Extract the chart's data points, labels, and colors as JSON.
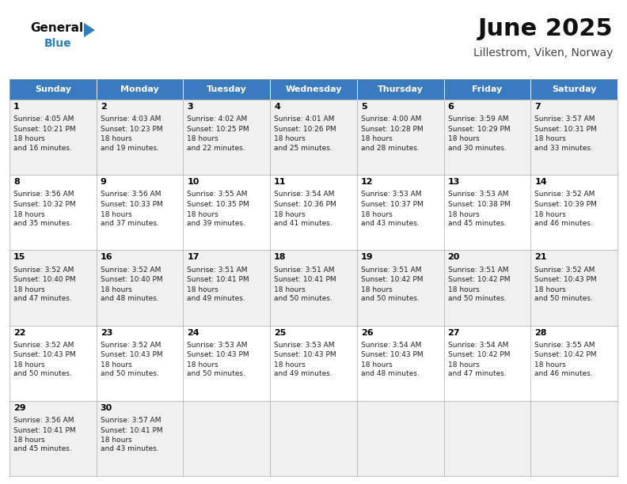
{
  "title": "June 2025",
  "subtitle": "Lillestrom, Viken, Norway",
  "header_color": "#3a7abf",
  "header_text_color": "#ffffff",
  "days_of_week": [
    "Sunday",
    "Monday",
    "Tuesday",
    "Wednesday",
    "Thursday",
    "Friday",
    "Saturday"
  ],
  "bg_color": "#ffffff",
  "cell_bg_even": "#f0f0f0",
  "cell_bg_odd": "#ffffff",
  "border_color": "#aaaaaa",
  "day_number_color": "#000000",
  "text_color": "#222222",
  "logo_general_color": "#111111",
  "logo_blue_color": "#2e7dbf",
  "title_color": "#111111",
  "subtitle_color": "#444444",
  "calendar_data": [
    [
      {
        "day": 1,
        "sunrise": "4:05 AM",
        "sunset": "10:21 PM",
        "daylight": "18 hours\nand 16 minutes."
      },
      {
        "day": 2,
        "sunrise": "4:03 AM",
        "sunset": "10:23 PM",
        "daylight": "18 hours\nand 19 minutes."
      },
      {
        "day": 3,
        "sunrise": "4:02 AM",
        "sunset": "10:25 PM",
        "daylight": "18 hours\nand 22 minutes."
      },
      {
        "day": 4,
        "sunrise": "4:01 AM",
        "sunset": "10:26 PM",
        "daylight": "18 hours\nand 25 minutes."
      },
      {
        "day": 5,
        "sunrise": "4:00 AM",
        "sunset": "10:28 PM",
        "daylight": "18 hours\nand 28 minutes."
      },
      {
        "day": 6,
        "sunrise": "3:59 AM",
        "sunset": "10:29 PM",
        "daylight": "18 hours\nand 30 minutes."
      },
      {
        "day": 7,
        "sunrise": "3:57 AM",
        "sunset": "10:31 PM",
        "daylight": "18 hours\nand 33 minutes."
      }
    ],
    [
      {
        "day": 8,
        "sunrise": "3:56 AM",
        "sunset": "10:32 PM",
        "daylight": "18 hours\nand 35 minutes."
      },
      {
        "day": 9,
        "sunrise": "3:56 AM",
        "sunset": "10:33 PM",
        "daylight": "18 hours\nand 37 minutes."
      },
      {
        "day": 10,
        "sunrise": "3:55 AM",
        "sunset": "10:35 PM",
        "daylight": "18 hours\nand 39 minutes."
      },
      {
        "day": 11,
        "sunrise": "3:54 AM",
        "sunset": "10:36 PM",
        "daylight": "18 hours\nand 41 minutes."
      },
      {
        "day": 12,
        "sunrise": "3:53 AM",
        "sunset": "10:37 PM",
        "daylight": "18 hours\nand 43 minutes."
      },
      {
        "day": 13,
        "sunrise": "3:53 AM",
        "sunset": "10:38 PM",
        "daylight": "18 hours\nand 45 minutes."
      },
      {
        "day": 14,
        "sunrise": "3:52 AM",
        "sunset": "10:39 PM",
        "daylight": "18 hours\nand 46 minutes."
      }
    ],
    [
      {
        "day": 15,
        "sunrise": "3:52 AM",
        "sunset": "10:40 PM",
        "daylight": "18 hours\nand 47 minutes."
      },
      {
        "day": 16,
        "sunrise": "3:52 AM",
        "sunset": "10:40 PM",
        "daylight": "18 hours\nand 48 minutes."
      },
      {
        "day": 17,
        "sunrise": "3:51 AM",
        "sunset": "10:41 PM",
        "daylight": "18 hours\nand 49 minutes."
      },
      {
        "day": 18,
        "sunrise": "3:51 AM",
        "sunset": "10:41 PM",
        "daylight": "18 hours\nand 50 minutes."
      },
      {
        "day": 19,
        "sunrise": "3:51 AM",
        "sunset": "10:42 PM",
        "daylight": "18 hours\nand 50 minutes."
      },
      {
        "day": 20,
        "sunrise": "3:51 AM",
        "sunset": "10:42 PM",
        "daylight": "18 hours\nand 50 minutes."
      },
      {
        "day": 21,
        "sunrise": "3:52 AM",
        "sunset": "10:43 PM",
        "daylight": "18 hours\nand 50 minutes."
      }
    ],
    [
      {
        "day": 22,
        "sunrise": "3:52 AM",
        "sunset": "10:43 PM",
        "daylight": "18 hours\nand 50 minutes."
      },
      {
        "day": 23,
        "sunrise": "3:52 AM",
        "sunset": "10:43 PM",
        "daylight": "18 hours\nand 50 minutes."
      },
      {
        "day": 24,
        "sunrise": "3:53 AM",
        "sunset": "10:43 PM",
        "daylight": "18 hours\nand 50 minutes."
      },
      {
        "day": 25,
        "sunrise": "3:53 AM",
        "sunset": "10:43 PM",
        "daylight": "18 hours\nand 49 minutes."
      },
      {
        "day": 26,
        "sunrise": "3:54 AM",
        "sunset": "10:43 PM",
        "daylight": "18 hours\nand 48 minutes."
      },
      {
        "day": 27,
        "sunrise": "3:54 AM",
        "sunset": "10:42 PM",
        "daylight": "18 hours\nand 47 minutes."
      },
      {
        "day": 28,
        "sunrise": "3:55 AM",
        "sunset": "10:42 PM",
        "daylight": "18 hours\nand 46 minutes."
      }
    ],
    [
      {
        "day": 29,
        "sunrise": "3:56 AM",
        "sunset": "10:41 PM",
        "daylight": "18 hours\nand 45 minutes."
      },
      {
        "day": 30,
        "sunrise": "3:57 AM",
        "sunset": "10:41 PM",
        "daylight": "18 hours\nand 43 minutes."
      },
      null,
      null,
      null,
      null,
      null
    ]
  ]
}
